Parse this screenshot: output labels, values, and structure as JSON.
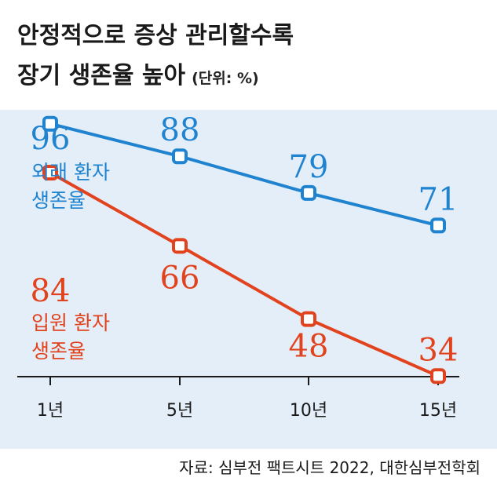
{
  "title_line1": "안정적으로 증상 관리할수록",
  "title_line2": "장기 생존율 높아",
  "unit": "(단위: %)",
  "source": "자료: 심부전 팩트시트 2022, 대한심부전학회",
  "colors": {
    "outpatient": "#1f83d0",
    "inpatient": "#e2431f",
    "background": "#e4eef8"
  },
  "chart_data": {
    "type": "line",
    "categories": [
      "1년",
      "5년",
      "10년",
      "15년"
    ],
    "ylim": [
      30,
      100
    ],
    "grid": false,
    "series": [
      {
        "name": "외래 환자 생존율",
        "name_line1": "외래 환자",
        "name_line2": "생존율",
        "values": [
          96,
          88,
          79,
          71
        ],
        "color": "#1f83d0"
      },
      {
        "name": "입원 환자 생존율",
        "name_line1": "입원 환자",
        "name_line2": "생존율",
        "values": [
          84,
          66,
          48,
          34
        ],
        "color": "#e2431f"
      }
    ]
  }
}
